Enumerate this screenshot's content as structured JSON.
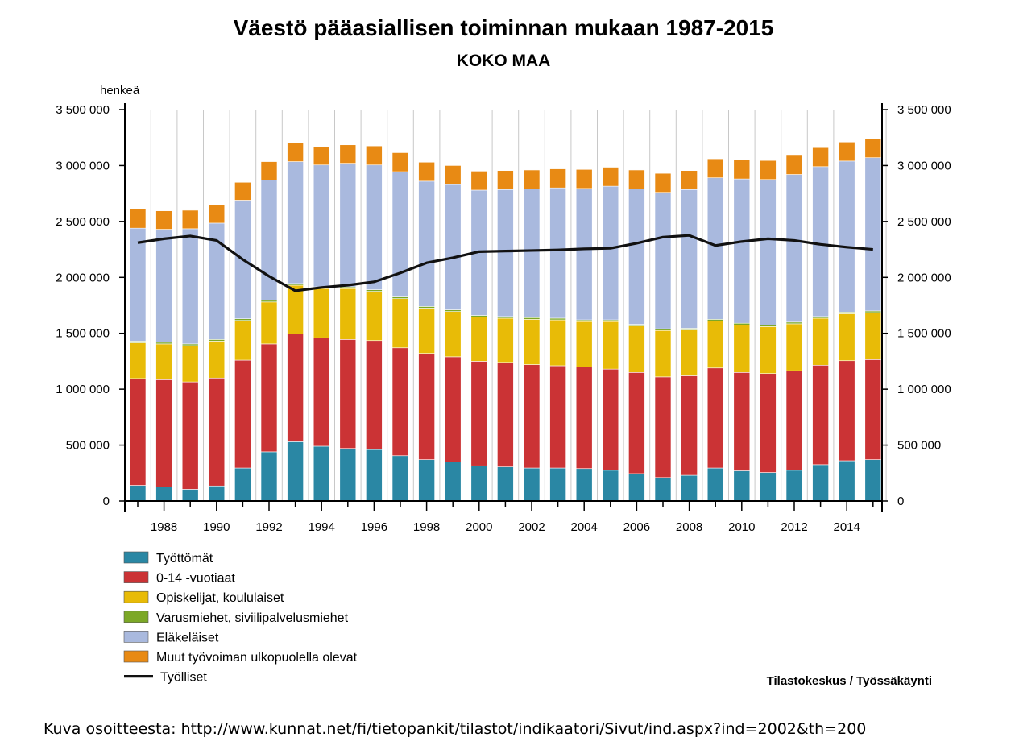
{
  "chart_data": {
    "type": "bar",
    "stacked": true,
    "title": "Väestö pääasiallisen toiminnan mukaan 1987-2015",
    "subtitle": "KOKO MAA",
    "ylabel": "henkeä",
    "ylim": [
      0,
      3500000
    ],
    "y_ticks": [
      0,
      500000,
      1000000,
      1500000,
      2000000,
      2500000,
      3000000,
      3500000
    ],
    "y_tick_labels": [
      "0",
      "500 000",
      "1 000 000",
      "1 500 000",
      "2 000 000",
      "2 500 000",
      "3 000 000",
      "3 500 000"
    ],
    "grid": "vertical",
    "legend_position": "bottom-left",
    "categories": [
      1987,
      1988,
      1989,
      1990,
      1991,
      1992,
      1993,
      1994,
      1995,
      1996,
      1997,
      1998,
      1999,
      2000,
      2001,
      2002,
      2003,
      2004,
      2005,
      2006,
      2007,
      2008,
      2009,
      2010,
      2011,
      2012,
      2013,
      2014,
      2015
    ],
    "x_tick_labels": [
      "1988",
      "1990",
      "1992",
      "1994",
      "1996",
      "1998",
      "2000",
      "2002",
      "2004",
      "2006",
      "2008",
      "2010",
      "2012",
      "2014"
    ],
    "series": [
      {
        "name": "Työttömät",
        "color": "#2a87a4",
        "values": [
          140000,
          125000,
          105000,
          135000,
          295000,
          440000,
          530000,
          490000,
          470000,
          460000,
          405000,
          370000,
          350000,
          315000,
          305000,
          295000,
          295000,
          290000,
          275000,
          245000,
          210000,
          230000,
          295000,
          270000,
          255000,
          275000,
          325000,
          360000,
          370000
        ]
      },
      {
        "name": "0-14 -vuotiaat",
        "color": "#cb3335",
        "values": [
          955000,
          960000,
          960000,
          965000,
          965000,
          965000,
          965000,
          970000,
          975000,
          975000,
          965000,
          950000,
          940000,
          935000,
          935000,
          925000,
          915000,
          910000,
          905000,
          905000,
          900000,
          890000,
          895000,
          880000,
          885000,
          890000,
          890000,
          895000,
          895000
        ]
      },
      {
        "name": "Opiskelijat, koululaiset",
        "color": "#e8bb07",
        "values": [
          320000,
          320000,
          325000,
          330000,
          355000,
          375000,
          435000,
          440000,
          455000,
          440000,
          440000,
          405000,
          405000,
          395000,
          395000,
          405000,
          410000,
          405000,
          425000,
          415000,
          415000,
          410000,
          420000,
          425000,
          420000,
          420000,
          420000,
          420000,
          420000
        ]
      },
      {
        "name": "Varusmiehet, siviilipalvelusmiehet",
        "color": "#7ca827",
        "values": [
          15000,
          15000,
          15000,
          15000,
          15000,
          15000,
          15000,
          15000,
          15000,
          15000,
          15000,
          15000,
          15000,
          15000,
          15000,
          15000,
          15000,
          15000,
          15000,
          15000,
          15000,
          15000,
          15000,
          15000,
          15000,
          15000,
          15000,
          15000,
          15000
        ]
      },
      {
        "name": "Eläkeläiset",
        "color": "#a9b9de",
        "values": [
          1010000,
          1010000,
          1030000,
          1040000,
          1060000,
          1075000,
          1090000,
          1090000,
          1105000,
          1115000,
          1120000,
          1120000,
          1120000,
          1120000,
          1135000,
          1150000,
          1165000,
          1175000,
          1195000,
          1210000,
          1220000,
          1240000,
          1265000,
          1290000,
          1300000,
          1320000,
          1340000,
          1350000,
          1370000
        ]
      },
      {
        "name": "Muut työvoiman ulkopuolella olevat",
        "color": "#e88a14",
        "values": [
          170000,
          165000,
          165000,
          165000,
          160000,
          165000,
          165000,
          165000,
          165000,
          170000,
          170000,
          170000,
          170000,
          170000,
          170000,
          170000,
          170000,
          170000,
          170000,
          170000,
          170000,
          170000,
          170000,
          170000,
          170000,
          170000,
          170000,
          170000,
          170000
        ]
      }
    ],
    "line_series": {
      "name": "Työlliset",
      "color": "#111111",
      "values": [
        2310000,
        2345000,
        2370000,
        2330000,
        2160000,
        2010000,
        1880000,
        1910000,
        1930000,
        1960000,
        2040000,
        2130000,
        2175000,
        2230000,
        2235000,
        2240000,
        2245000,
        2255000,
        2260000,
        2305000,
        2360000,
        2375000,
        2285000,
        2320000,
        2345000,
        2330000,
        2295000,
        2270000,
        2250000
      ]
    },
    "source": "Tilastokeskus / Työssäkäynti",
    "caption": "Kuva osoitteesta: http://www.kunnat.net/fi/tietopankit/tilastot/indikaatori/Sivut/ind.aspx?ind=2002&th=200"
  }
}
